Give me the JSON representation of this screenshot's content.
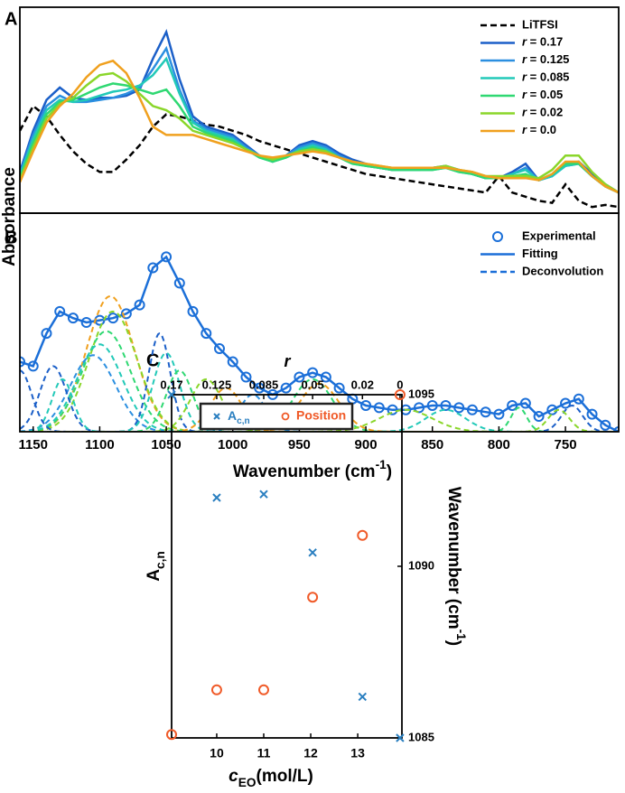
{
  "chart_data": [
    {
      "panel": "A",
      "type": "line",
      "ylabel": "Absorbance",
      "xlim": [
        1160,
        710
      ],
      "ylim": [
        0,
        1
      ],
      "legend": "upper right",
      "x": [
        1160,
        1150,
        1140,
        1130,
        1120,
        1110,
        1100,
        1090,
        1080,
        1070,
        1060,
        1050,
        1040,
        1030,
        1020,
        1010,
        1000,
        990,
        980,
        970,
        960,
        950,
        940,
        930,
        920,
        910,
        900,
        890,
        880,
        870,
        860,
        850,
        840,
        830,
        820,
        810,
        800,
        790,
        780,
        770,
        760,
        750,
        740,
        730,
        720,
        710
      ],
      "series": [
        {
          "name": "LiTFSI",
          "color": "#000000",
          "linestyle": "dashed",
          "values": [
            0.4,
            0.52,
            0.47,
            0.38,
            0.3,
            0.24,
            0.2,
            0.2,
            0.26,
            0.33,
            0.42,
            0.48,
            0.47,
            0.45,
            0.43,
            0.42,
            0.4,
            0.38,
            0.35,
            0.33,
            0.31,
            0.29,
            0.27,
            0.25,
            0.23,
            0.21,
            0.19,
            0.18,
            0.17,
            0.16,
            0.15,
            0.14,
            0.13,
            0.12,
            0.11,
            0.1,
            0.18,
            0.1,
            0.08,
            0.06,
            0.05,
            0.14,
            0.06,
            0.03,
            0.04,
            0.03
          ]
        },
        {
          "name": "r = 0.17",
          "color": "#1b5fc8",
          "linestyle": "solid",
          "values": [
            0.2,
            0.4,
            0.55,
            0.61,
            0.56,
            0.55,
            0.56,
            0.56,
            0.57,
            0.6,
            0.75,
            0.88,
            0.65,
            0.47,
            0.42,
            0.4,
            0.38,
            0.33,
            0.28,
            0.25,
            0.28,
            0.33,
            0.35,
            0.33,
            0.29,
            0.26,
            0.24,
            0.22,
            0.21,
            0.21,
            0.21,
            0.22,
            0.23,
            0.21,
            0.19,
            0.17,
            0.17,
            0.2,
            0.24,
            0.16,
            0.18,
            0.24,
            0.25,
            0.19,
            0.14,
            0.1
          ]
        },
        {
          "name": "r = 0.125",
          "color": "#2b8fe0",
          "linestyle": "solid",
          "values": [
            0.19,
            0.38,
            0.52,
            0.57,
            0.54,
            0.54,
            0.55,
            0.56,
            0.58,
            0.61,
            0.7,
            0.8,
            0.6,
            0.45,
            0.41,
            0.39,
            0.37,
            0.32,
            0.28,
            0.25,
            0.28,
            0.32,
            0.34,
            0.32,
            0.28,
            0.25,
            0.23,
            0.22,
            0.21,
            0.21,
            0.21,
            0.22,
            0.22,
            0.21,
            0.19,
            0.17,
            0.17,
            0.19,
            0.22,
            0.16,
            0.18,
            0.23,
            0.24,
            0.18,
            0.13,
            0.1
          ]
        },
        {
          "name": "r = 0.085",
          "color": "#22c9b8",
          "linestyle": "solid",
          "values": [
            0.18,
            0.36,
            0.5,
            0.55,
            0.54,
            0.55,
            0.57,
            0.59,
            0.6,
            0.62,
            0.67,
            0.75,
            0.58,
            0.44,
            0.4,
            0.38,
            0.36,
            0.31,
            0.27,
            0.25,
            0.27,
            0.31,
            0.33,
            0.31,
            0.27,
            0.24,
            0.23,
            0.22,
            0.21,
            0.21,
            0.21,
            0.21,
            0.22,
            0.2,
            0.19,
            0.17,
            0.17,
            0.19,
            0.21,
            0.16,
            0.18,
            0.23,
            0.24,
            0.18,
            0.13,
            0.1
          ]
        },
        {
          "name": "r = 0.05",
          "color": "#2fd872",
          "linestyle": "solid",
          "values": [
            0.17,
            0.34,
            0.48,
            0.54,
            0.55,
            0.58,
            0.61,
            0.63,
            0.62,
            0.6,
            0.58,
            0.6,
            0.52,
            0.42,
            0.39,
            0.37,
            0.35,
            0.31,
            0.27,
            0.25,
            0.27,
            0.3,
            0.32,
            0.3,
            0.27,
            0.24,
            0.23,
            0.22,
            0.21,
            0.21,
            0.21,
            0.21,
            0.22,
            0.2,
            0.19,
            0.17,
            0.17,
            0.18,
            0.19,
            0.16,
            0.19,
            0.24,
            0.24,
            0.18,
            0.13,
            0.1
          ]
        },
        {
          "name": "r = 0.02",
          "color": "#8ad62a",
          "linestyle": "solid",
          "values": [
            0.16,
            0.32,
            0.46,
            0.53,
            0.56,
            0.62,
            0.67,
            0.68,
            0.64,
            0.58,
            0.52,
            0.5,
            0.46,
            0.4,
            0.38,
            0.36,
            0.34,
            0.31,
            0.28,
            0.26,
            0.28,
            0.3,
            0.31,
            0.3,
            0.27,
            0.25,
            0.24,
            0.23,
            0.22,
            0.22,
            0.22,
            0.22,
            0.23,
            0.21,
            0.2,
            0.18,
            0.18,
            0.18,
            0.18,
            0.17,
            0.21,
            0.28,
            0.28,
            0.2,
            0.14,
            0.1
          ]
        },
        {
          "name": "r = 0.0",
          "color": "#f0a01e",
          "linestyle": "solid",
          "values": [
            0.15,
            0.3,
            0.44,
            0.52,
            0.58,
            0.66,
            0.72,
            0.74,
            0.68,
            0.56,
            0.42,
            0.38,
            0.38,
            0.38,
            0.36,
            0.34,
            0.32,
            0.3,
            0.28,
            0.27,
            0.28,
            0.29,
            0.3,
            0.29,
            0.27,
            0.25,
            0.24,
            0.23,
            0.22,
            0.22,
            0.22,
            0.22,
            0.22,
            0.21,
            0.2,
            0.18,
            0.17,
            0.17,
            0.17,
            0.16,
            0.19,
            0.25,
            0.25,
            0.18,
            0.13,
            0.1
          ]
        }
      ]
    },
    {
      "panel": "B",
      "type": "line",
      "xlim": [
        1160,
        710
      ],
      "ylim": [
        0,
        1
      ],
      "legend": "upper right",
      "xticks": [
        1150,
        1100,
        1050,
        1000,
        950,
        900,
        850,
        800,
        750
      ],
      "xlabel": [
        {
          "text": "Wavenumber (cm"
        },
        {
          "text": "-1",
          "sup": true
        },
        {
          "text": ")"
        }
      ],
      "x": [
        1160,
        1150,
        1140,
        1130,
        1120,
        1110,
        1100,
        1090,
        1080,
        1070,
        1060,
        1050,
        1040,
        1030,
        1020,
        1010,
        1000,
        990,
        980,
        970,
        960,
        950,
        940,
        930,
        920,
        910,
        900,
        890,
        880,
        870,
        860,
        850,
        840,
        830,
        820,
        810,
        800,
        790,
        780,
        770,
        760,
        750,
        740,
        730,
        720,
        710
      ],
      "series": [
        {
          "name": "Experimental",
          "color": "#1b6fd8",
          "marker": "circle",
          "values": [
            0.32,
            0.3,
            0.45,
            0.55,
            0.52,
            0.5,
            0.51,
            0.52,
            0.54,
            0.58,
            0.75,
            0.8,
            0.68,
            0.55,
            0.45,
            0.38,
            0.32,
            0.25,
            0.2,
            0.17,
            0.2,
            0.25,
            0.27,
            0.25,
            0.2,
            0.15,
            0.12,
            0.11,
            0.1,
            0.1,
            0.11,
            0.12,
            0.12,
            0.11,
            0.1,
            0.09,
            0.08,
            0.12,
            0.13,
            0.07,
            0.1,
            0.13,
            0.15,
            0.08,
            0.03,
            0.0
          ]
        },
        {
          "name": "Fitting",
          "color": "#1b6fd8",
          "linestyle": "solid",
          "values": [
            0.32,
            0.3,
            0.45,
            0.55,
            0.52,
            0.5,
            0.51,
            0.52,
            0.54,
            0.58,
            0.75,
            0.8,
            0.68,
            0.55,
            0.45,
            0.38,
            0.32,
            0.25,
            0.2,
            0.17,
            0.2,
            0.25,
            0.27,
            0.25,
            0.2,
            0.15,
            0.12,
            0.11,
            0.1,
            0.1,
            0.11,
            0.12,
            0.12,
            0.11,
            0.1,
            0.09,
            0.08,
            0.12,
            0.13,
            0.07,
            0.1,
            0.13,
            0.15,
            0.08,
            0.03,
            0.0
          ]
        },
        {
          "name": "Deconvolution",
          "color": "#1b6fd8",
          "linestyle": "dashed",
          "components": [
            {
              "color": "#f0a01e",
              "center": 1092,
              "height": 0.62,
              "width": 18
            },
            {
              "color": "#8ad62a",
              "center": 1090,
              "height": 0.55,
              "width": 18
            },
            {
              "color": "#2fd872",
              "center": 1095,
              "height": 0.46,
              "width": 18
            },
            {
              "color": "#22c9b8",
              "center": 1100,
              "height": 0.4,
              "width": 17
            },
            {
              "color": "#2b8fe0",
              "center": 1105,
              "height": 0.35,
              "width": 17
            },
            {
              "color": "#1b5fc8",
              "center": 1135,
              "height": 0.3,
              "width": 10
            },
            {
              "color": "#22c9b8",
              "center": 1128,
              "height": 0.24,
              "width": 8
            },
            {
              "color": "#1b5fc8",
              "center": 1160,
              "height": 0.28,
              "width": 9
            },
            {
              "color": "#1b5fc8",
              "center": 1055,
              "height": 0.45,
              "width": 8
            },
            {
              "color": "#22c9b8",
              "center": 1050,
              "height": 0.36,
              "width": 10
            },
            {
              "color": "#2fd872",
              "center": 1040,
              "height": 0.28,
              "width": 10
            },
            {
              "color": "#8ad62a",
              "center": 1020,
              "height": 0.24,
              "width": 12
            },
            {
              "color": "#f0a01e",
              "center": 1005,
              "height": 0.2,
              "width": 12
            },
            {
              "color": "#2b8fe0",
              "center": 985,
              "height": 0.17,
              "width": 10
            },
            {
              "color": "#2fd872",
              "center": 940,
              "height": 0.24,
              "width": 15
            },
            {
              "color": "#f0a01e",
              "center": 935,
              "height": 0.22,
              "width": 15
            },
            {
              "color": "#8ad62a",
              "center": 870,
              "height": 0.1,
              "width": 20
            },
            {
              "color": "#22c9b8",
              "center": 840,
              "height": 0.1,
              "width": 15
            },
            {
              "color": "#2fd872",
              "center": 785,
              "height": 0.11,
              "width": 6
            },
            {
              "color": "#1b5fc8",
              "center": 745,
              "height": 0.12,
              "width": 8
            },
            {
              "color": "#8ad62a",
              "center": 755,
              "height": 0.1,
              "width": 8
            }
          ]
        }
      ]
    },
    {
      "panel": "C",
      "type": "scatter",
      "legend": "upper center",
      "xlabel": [
        {
          "text": "c",
          "italic": true
        },
        {
          "text": "EO",
          "sub": true
        },
        {
          "text": "(mol/L)"
        }
      ],
      "x2label": "r",
      "ylabel": [
        {
          "text": "A"
        },
        {
          "text": "c,n",
          "sub": true
        }
      ],
      "y2label": [
        {
          "text": "Wavenumber (cm"
        },
        {
          "text": "-1",
          "sup": true
        },
        {
          "text": ")"
        }
      ],
      "xlim": [
        9.04,
        13.94
      ],
      "ylim": [
        0,
        1
      ],
      "y2lim": [
        1085,
        1095
      ],
      "xticks": [
        10,
        11,
        12,
        13
      ],
      "x2ticks": [
        {
          "value": 9.04,
          "label": "0.17"
        },
        {
          "value": 10,
          "label": "0.125"
        },
        {
          "value": 11,
          "label": "0.085"
        },
        {
          "value": 12.04,
          "label": "0.05"
        },
        {
          "value": 13.1,
          "label": "0.02"
        },
        {
          "value": 13.9,
          "label": "0"
        }
      ],
      "y2ticks": [
        1085,
        1090,
        1095
      ],
      "x": [
        9.04,
        10,
        11,
        12.04,
        13.1,
        13.9
      ],
      "series": [
        {
          "name": [
            {
              "text": "A"
            },
            {
              "text": "c,n",
              "sub": true
            }
          ],
          "color": "#2a7fc0",
          "marker": "cross",
          "axis": "y",
          "values": [
            1.0,
            0.7,
            0.71,
            0.54,
            0.12,
            0.0
          ]
        },
        {
          "name": "Position",
          "color": "#f05a28",
          "marker": "circle",
          "axis": "y2",
          "values": [
            1085.1,
            1086.4,
            1086.4,
            1089.1,
            1090.9,
            1095.0
          ]
        }
      ]
    }
  ]
}
